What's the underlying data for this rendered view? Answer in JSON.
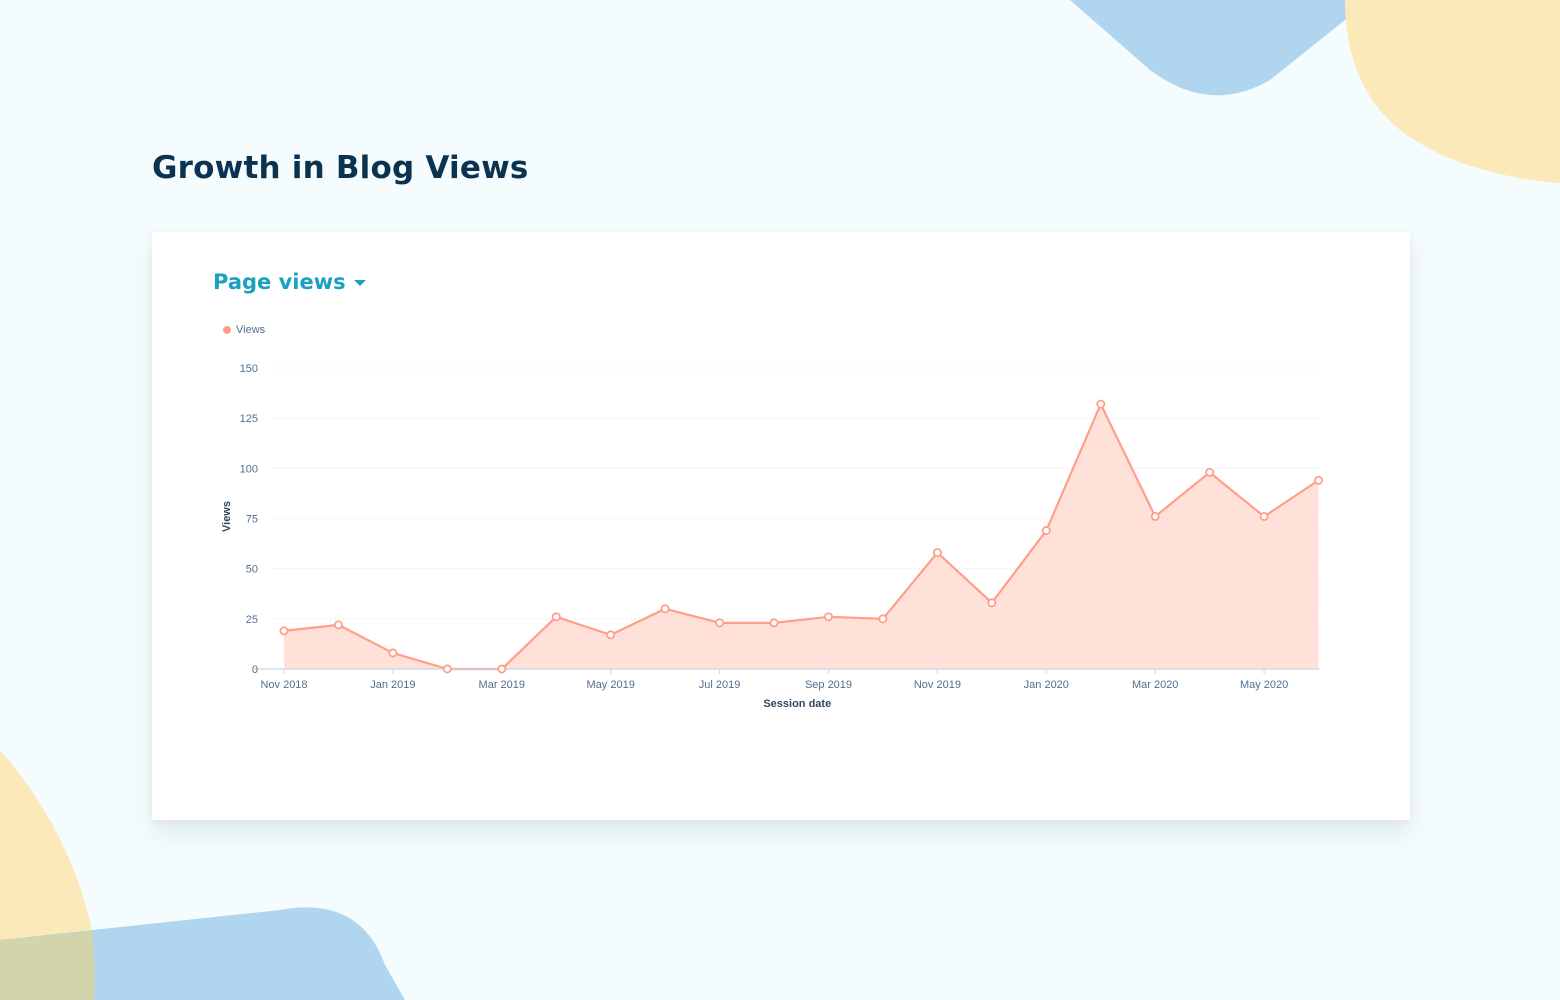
{
  "page": {
    "title": "Growth in Blog Views"
  },
  "card": {
    "metric_label": "Page views"
  },
  "colors": {
    "title": "#0b3350",
    "accent": "#1aa1c0",
    "series_line": "#ff9f8a",
    "series_fill": "#ffdcd4",
    "blob_blue": "#b0d5ee",
    "blob_yellow": "#fbe9b9"
  },
  "icons": {
    "metric_dropdown": "caret-down-icon",
    "legend_marker": "dot-icon"
  },
  "chart_data": {
    "type": "area",
    "xlabel": "Session date",
    "ylabel": "Views",
    "ylim": [
      0,
      150
    ],
    "yticks": [
      0,
      25,
      50,
      75,
      100,
      125,
      150
    ],
    "grid": true,
    "legend": "top-left",
    "x_tick_labels": [
      "Nov 2018",
      "Jan 2019",
      "Mar 2019",
      "May 2019",
      "Jul 2019",
      "Sep 2019",
      "Nov 2019",
      "Jan 2020",
      "Mar 2020",
      "May 2020"
    ],
    "x": [
      "Nov 2018",
      "Dec 2018",
      "Jan 2019",
      "Feb 2019",
      "Mar 2019",
      "Apr 2019",
      "May 2019",
      "Jun 2019",
      "Jul 2019",
      "Aug 2019",
      "Sep 2019",
      "Oct 2019",
      "Nov 2019",
      "Dec 2019",
      "Jan 2020",
      "Feb 2020",
      "Mar 2020",
      "Apr 2020",
      "May 2020",
      "Jun 2020"
    ],
    "series": [
      {
        "name": "Views",
        "values": [
          19,
          22,
          8,
          0,
          0,
          26,
          17,
          30,
          23,
          23,
          26,
          25,
          58,
          33,
          69,
          132,
          76,
          98,
          76,
          94
        ]
      }
    ]
  }
}
